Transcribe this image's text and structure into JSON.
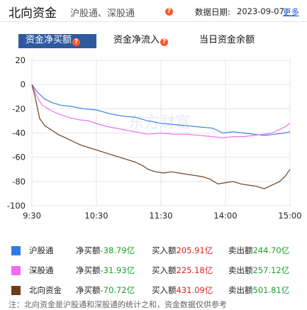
{
  "header": {
    "title": "北向资金",
    "subtitle": "沪股通、深股通",
    "date_label": "数据日期:",
    "date_value": "2023-09-07",
    "more_link": "更多",
    "help_glyph": "?"
  },
  "tabs": [
    {
      "label": "资金净买额",
      "active": true
    },
    {
      "label": "资金净流入",
      "active": false
    },
    {
      "label": "当日资金余额",
      "active": false
    }
  ],
  "watermark": "东方财富",
  "chart_data": {
    "type": "line",
    "x_ticks": [
      "9:30",
      "10:30",
      "11:30",
      "14:00",
      "15:00"
    ],
    "y_ticks": [
      20,
      0,
      -20,
      -40,
      -60,
      -80,
      -100
    ],
    "ylim": [
      -100,
      20
    ],
    "grid": true,
    "series": [
      {
        "name": "沪股通",
        "color": "#3b82f0",
        "points": [
          [
            0,
            0
          ],
          [
            0.02,
            -6
          ],
          [
            0.05,
            -12
          ],
          [
            0.08,
            -15
          ],
          [
            0.11,
            -17
          ],
          [
            0.15,
            -18
          ],
          [
            0.2,
            -20
          ],
          [
            0.25,
            -21
          ],
          [
            0.3,
            -24
          ],
          [
            0.35,
            -26
          ],
          [
            0.4,
            -27
          ],
          [
            0.45,
            -30
          ],
          [
            0.5,
            -32
          ],
          [
            0.55,
            -33
          ],
          [
            0.6,
            -34
          ],
          [
            0.65,
            -35
          ],
          [
            0.7,
            -36
          ],
          [
            0.74,
            -40
          ],
          [
            0.78,
            -39
          ],
          [
            0.82,
            -40
          ],
          [
            0.86,
            -41
          ],
          [
            0.9,
            -42
          ],
          [
            0.94,
            -41
          ],
          [
            0.98,
            -40
          ],
          [
            1.0,
            -39
          ]
        ]
      },
      {
        "name": "深股通",
        "color": "#f070f0",
        "points": [
          [
            0,
            0
          ],
          [
            0.02,
            -10
          ],
          [
            0.04,
            -17
          ],
          [
            0.07,
            -21
          ],
          [
            0.1,
            -24
          ],
          [
            0.14,
            -27
          ],
          [
            0.18,
            -29
          ],
          [
            0.22,
            -30
          ],
          [
            0.26,
            -33
          ],
          [
            0.3,
            -35
          ],
          [
            0.35,
            -37
          ],
          [
            0.4,
            -39
          ],
          [
            0.45,
            -41
          ],
          [
            0.5,
            -40
          ],
          [
            0.55,
            -41
          ],
          [
            0.6,
            -41
          ],
          [
            0.65,
            -42
          ],
          [
            0.7,
            -43
          ],
          [
            0.74,
            -44
          ],
          [
            0.78,
            -43
          ],
          [
            0.82,
            -43
          ],
          [
            0.86,
            -42
          ],
          [
            0.9,
            -41
          ],
          [
            0.93,
            -40
          ],
          [
            0.96,
            -37
          ],
          [
            0.98,
            -35
          ],
          [
            1.0,
            -32
          ]
        ]
      },
      {
        "name": "北向资金",
        "color": "#6e3f1c",
        "points": [
          [
            0,
            0
          ],
          [
            0.01,
            -8
          ],
          [
            0.02,
            -18
          ],
          [
            0.03,
            -28
          ],
          [
            0.05,
            -34
          ],
          [
            0.08,
            -38
          ],
          [
            0.1,
            -41
          ],
          [
            0.13,
            -44
          ],
          [
            0.16,
            -47
          ],
          [
            0.19,
            -50
          ],
          [
            0.22,
            -52
          ],
          [
            0.25,
            -54
          ],
          [
            0.28,
            -56
          ],
          [
            0.31,
            -58
          ],
          [
            0.34,
            -60
          ],
          [
            0.37,
            -62
          ],
          [
            0.4,
            -64
          ],
          [
            0.43,
            -67
          ],
          [
            0.45,
            -70
          ],
          [
            0.48,
            -72
          ],
          [
            0.51,
            -73
          ],
          [
            0.54,
            -72
          ],
          [
            0.57,
            -73
          ],
          [
            0.6,
            -74
          ],
          [
            0.63,
            -75
          ],
          [
            0.66,
            -76
          ],
          [
            0.69,
            -78
          ],
          [
            0.72,
            -82
          ],
          [
            0.75,
            -81
          ],
          [
            0.78,
            -80
          ],
          [
            0.81,
            -82
          ],
          [
            0.84,
            -83
          ],
          [
            0.87,
            -84
          ],
          [
            0.9,
            -86
          ],
          [
            0.92,
            -84
          ],
          [
            0.94,
            -82
          ],
          [
            0.96,
            -80
          ],
          [
            0.98,
            -76
          ],
          [
            1.0,
            -70
          ]
        ]
      }
    ]
  },
  "legend": [
    {
      "name": "沪股通",
      "color": "#2f7de0",
      "net_label": "净买额",
      "net_value": "-38.79亿",
      "buy_label": "买入额",
      "buy_value": "205.91亿",
      "sell_label": "卖出额",
      "sell_value": "244.70亿"
    },
    {
      "name": "深股通",
      "color": "#f06cf0",
      "net_label": "净买额",
      "net_value": "-31.93亿",
      "buy_label": "买入额",
      "buy_value": "225.18亿",
      "sell_label": "卖出额",
      "sell_value": "257.12亿"
    },
    {
      "name": "北向资金",
      "color": "#6b3d1c",
      "net_label": "净买额",
      "net_value": "-70.72亿",
      "buy_label": "买入额",
      "buy_value": "431.09亿",
      "sell_label": "卖出额",
      "sell_value": "501.81亿"
    }
  ],
  "bottom_text": "注：北向资金是沪股通和深股通的统计之和，资金数据仅供参考"
}
